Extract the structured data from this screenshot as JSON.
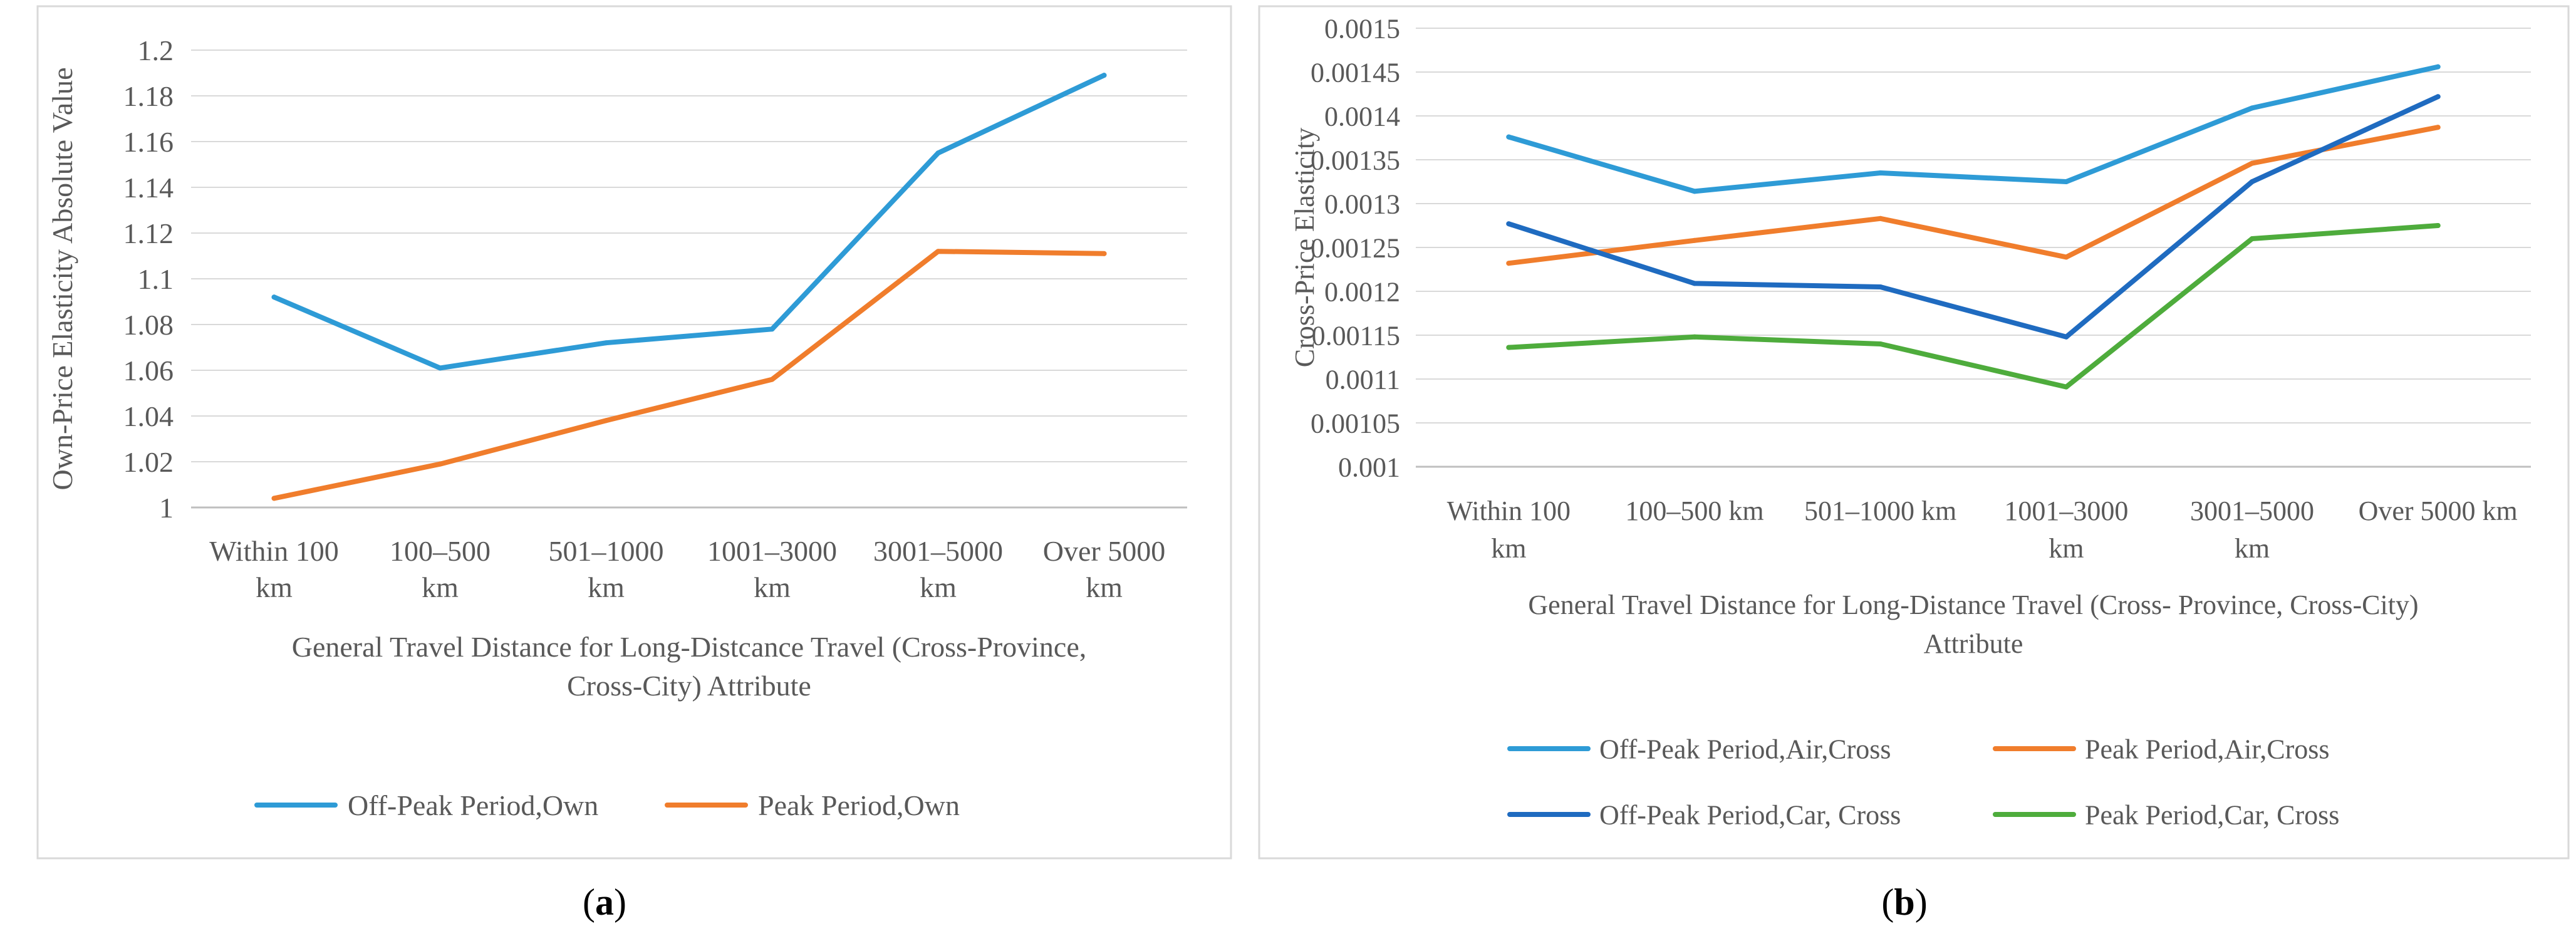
{
  "charts": {
    "a": {
      "subfig_label": "a",
      "chart_index": 0
    },
    "b": {
      "subfig_label": "b",
      "chart_index": 1
    }
  },
  "chart_data": [
    {
      "type": "line",
      "title": "",
      "xlabel_lines": [
        "General Travel Distance for Long-Distcance Travel (Cross-Province,",
        "Cross-City) Attribute"
      ],
      "ylabel": "Own-Price Elasticity Absolute Value",
      "categories": [
        [
          "Within 100",
          "km"
        ],
        [
          "100–500",
          "km"
        ],
        [
          "501–1000",
          "km"
        ],
        [
          "1001–3000",
          "km"
        ],
        [
          "3001–5000",
          "km"
        ],
        [
          "Over 5000",
          "km"
        ]
      ],
      "ylim": [
        1,
        1.2
      ],
      "yticks": [
        "1",
        "1.02",
        "1.04",
        "1.06",
        "1.08",
        "1.1",
        "1.12",
        "1.14",
        "1.16",
        "1.18",
        "1.2"
      ],
      "series": [
        {
          "name": "Off-Peak Period,Own",
          "color": "#2E9BD6",
          "values": [
            1.092,
            1.061,
            1.072,
            1.078,
            1.155,
            1.189
          ]
        },
        {
          "name": "Peak Period,Own",
          "color": "#F07D2C",
          "values": [
            1.004,
            1.019,
            1.038,
            1.056,
            1.112,
            1.111
          ]
        }
      ]
    },
    {
      "type": "line",
      "title": "",
      "xlabel_lines": [
        "General Travel Distance for Long-Distance Travel (Cross- Province, Cross-City)",
        "Attribute"
      ],
      "ylabel": "Cross-Price Elasticity",
      "categories": [
        [
          "Within 100",
          "km"
        ],
        [
          "100–500 km"
        ],
        [
          "501–1000 km"
        ],
        [
          "1001–3000",
          "km"
        ],
        [
          "3001–5000",
          "km"
        ],
        [
          "Over 5000 km"
        ]
      ],
      "ylim": [
        0.001,
        0.0015
      ],
      "yticks": [
        "0.001",
        "0.00105",
        "0.0011",
        "0.00115",
        "0.0012",
        "0.00125",
        "0.0013",
        "0.00135",
        "0.0014",
        "0.00145",
        "0.0015"
      ],
      "series": [
        {
          "name": "Off-Peak Period,Air,Cross",
          "color": "#2E9BD6",
          "values": [
            0.001376,
            0.001314,
            0.001335,
            0.001325,
            0.001409,
            0.001456
          ]
        },
        {
          "name": "Peak Period,Air,Cross",
          "color": "#F07D2C",
          "values": [
            0.001232,
            0.001258,
            0.001283,
            0.001239,
            0.001346,
            0.001387
          ]
        },
        {
          "name": "Off-Peak Period,Car, Cross",
          "color": "#1F6BC0",
          "values": [
            0.001277,
            0.001209,
            0.001205,
            0.001148,
            0.001325,
            0.001422
          ]
        },
        {
          "name": "Peak Period,Car, Cross",
          "color": "#4EAC3C",
          "values": [
            0.001136,
            0.001148,
            0.00114,
            0.001091,
            0.00126,
            0.001275
          ]
        }
      ]
    }
  ]
}
